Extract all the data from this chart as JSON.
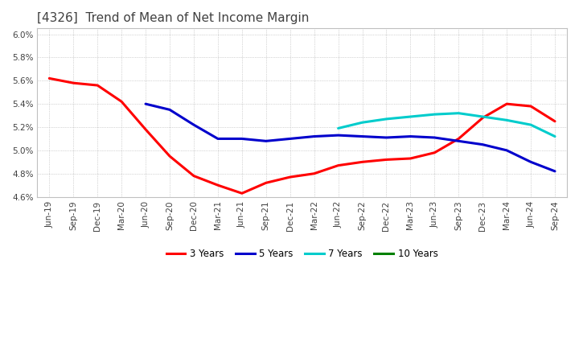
{
  "title": "[4326]  Trend of Mean of Net Income Margin",
  "title_color": "#404040",
  "background_color": "#ffffff",
  "grid_color": "#b0b0b0",
  "ylim": [
    0.046,
    0.0605
  ],
  "yticks": [
    0.046,
    0.048,
    0.05,
    0.052,
    0.054,
    0.056,
    0.058,
    0.06
  ],
  "x_labels": [
    "Jun-19",
    "Sep-19",
    "Dec-19",
    "Mar-20",
    "Jun-20",
    "Sep-20",
    "Dec-20",
    "Mar-21",
    "Jun-21",
    "Sep-21",
    "Dec-21",
    "Mar-22",
    "Jun-22",
    "Sep-22",
    "Dec-22",
    "Mar-23",
    "Jun-23",
    "Sep-23",
    "Dec-23",
    "Mar-24",
    "Jun-24",
    "Sep-24"
  ],
  "series": {
    "3 Years": {
      "color": "#ff0000",
      "values": [
        0.0562,
        0.0558,
        0.0556,
        0.0542,
        0.0518,
        0.0495,
        0.0478,
        0.047,
        0.0463,
        0.0472,
        0.0477,
        0.048,
        0.0487,
        0.049,
        0.0492,
        0.0493,
        0.0498,
        0.051,
        0.0528,
        0.054,
        0.0538,
        0.0525
      ]
    },
    "5 Years": {
      "color": "#0000cc",
      "values": [
        null,
        null,
        null,
        null,
        0.054,
        0.0535,
        0.0522,
        0.051,
        0.051,
        0.0508,
        0.051,
        0.0512,
        0.0513,
        0.0512,
        0.0511,
        0.0512,
        0.0511,
        0.0508,
        0.0505,
        0.05,
        0.049,
        0.0482
      ]
    },
    "7 Years": {
      "color": "#00cccc",
      "values": [
        null,
        null,
        null,
        null,
        null,
        null,
        null,
        null,
        null,
        null,
        null,
        null,
        0.0519,
        0.0524,
        0.0527,
        0.0529,
        0.0531,
        0.0532,
        0.0529,
        0.0526,
        0.0522,
        0.0512
      ]
    },
    "10 Years": {
      "color": "#008000",
      "values": [
        null,
        null,
        null,
        null,
        null,
        null,
        null,
        null,
        null,
        null,
        null,
        null,
        null,
        null,
        null,
        null,
        null,
        null,
        null,
        null,
        null,
        null
      ]
    }
  },
  "legend_labels": [
    "3 Years",
    "5 Years",
    "7 Years",
    "10 Years"
  ],
  "legend_colors": [
    "#ff0000",
    "#0000cc",
    "#00cccc",
    "#008000"
  ],
  "line_width": 2.2
}
